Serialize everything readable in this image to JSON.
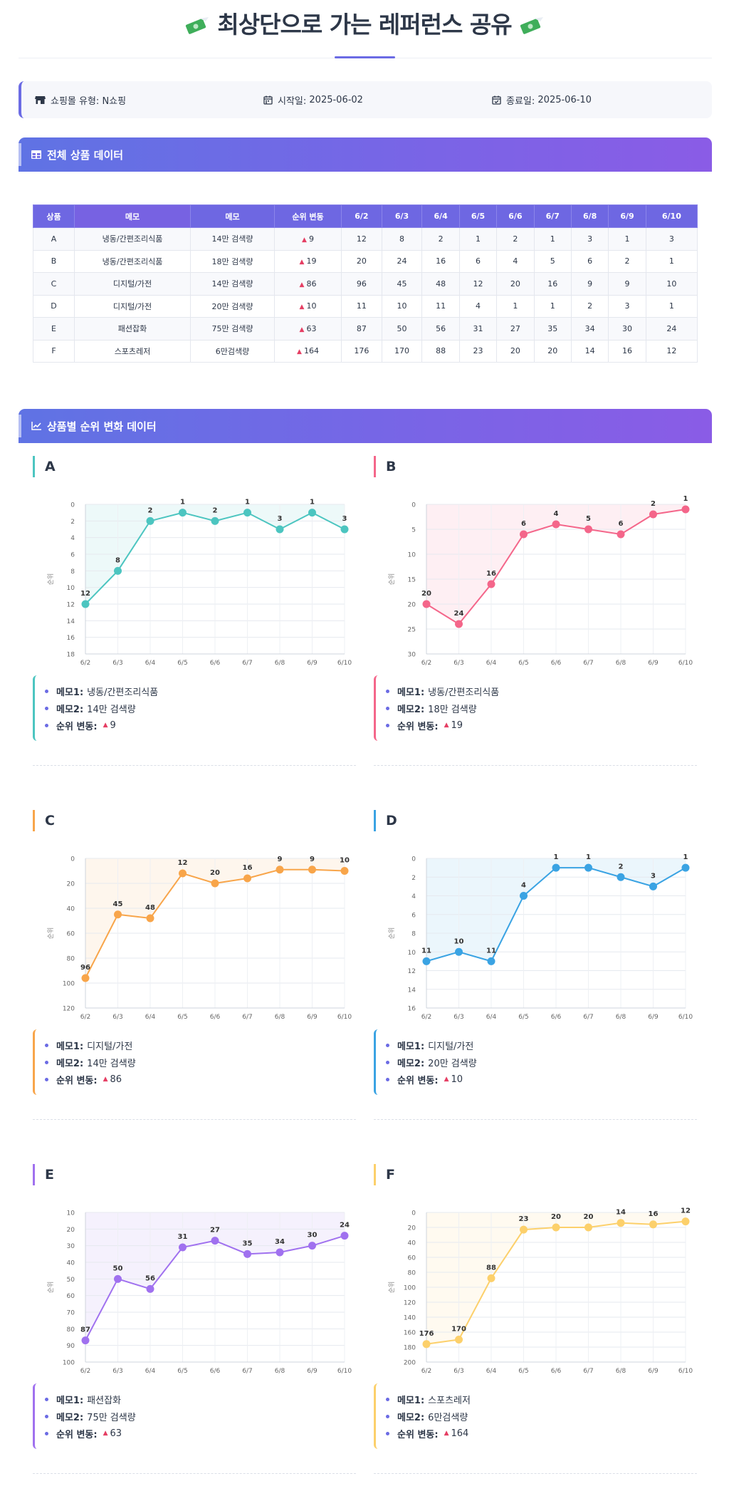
{
  "page": {
    "title": "최상단으로 가는 레퍼런스 공유"
  },
  "info": {
    "mall_label": "쇼핑몰 유형:",
    "mall_value": "N쇼핑",
    "start_label": "시작일:",
    "start_value": "2025-06-02",
    "end_label": "종료일:",
    "end_value": "2025-06-10"
  },
  "sections": {
    "table_title": "전체 상품 데이터",
    "charts_title": "상품별 순위 변화 데이터"
  },
  "table": {
    "headers": [
      "상품",
      "메모",
      "메모",
      "순위 변동",
      "6/2",
      "6/3",
      "6/4",
      "6/5",
      "6/6",
      "6/7",
      "6/8",
      "6/9",
      "6/10"
    ],
    "rows": [
      {
        "product": "A",
        "memo1": "냉동/간편조리식품",
        "memo2": "14만 검색량",
        "change": "9",
        "ranks": [
          "12",
          "8",
          "2",
          "1",
          "2",
          "1",
          "3",
          "1",
          "3"
        ]
      },
      {
        "product": "B",
        "memo1": "냉동/간편조리식품",
        "memo2": "18만 검색량",
        "change": "19",
        "ranks": [
          "20",
          "24",
          "16",
          "6",
          "4",
          "5",
          "6",
          "2",
          "1"
        ]
      },
      {
        "product": "C",
        "memo1": "디지털/가전",
        "memo2": "14만 검색량",
        "change": "86",
        "ranks": [
          "96",
          "45",
          "48",
          "12",
          "20",
          "16",
          "9",
          "9",
          "10"
        ]
      },
      {
        "product": "D",
        "memo1": "디지털/가전",
        "memo2": "20만 검색량",
        "change": "10",
        "ranks": [
          "11",
          "10",
          "11",
          "4",
          "1",
          "1",
          "2",
          "3",
          "1"
        ]
      },
      {
        "product": "E",
        "memo1": "패션잡화",
        "memo2": "75만 검색량",
        "change": "63",
        "ranks": [
          "87",
          "50",
          "56",
          "31",
          "27",
          "35",
          "34",
          "30",
          "24"
        ]
      },
      {
        "product": "F",
        "memo1": "스포츠레저",
        "memo2": "6만검색량",
        "change": "164",
        "ranks": [
          "176",
          "170",
          "88",
          "23",
          "20",
          "20",
          "14",
          "16",
          "12"
        ]
      }
    ]
  },
  "memo_labels": {
    "memo1": "메모1:",
    "memo2": "메모2:",
    "change": "순위 변동:"
  },
  "chart_data": [
    {
      "type": "line",
      "title": "A",
      "ylabel": "순위",
      "y_reversed": true,
      "ylim": [
        0,
        18
      ],
      "yticks": [
        0,
        2,
        4,
        6,
        8,
        10,
        12,
        14,
        16,
        18
      ],
      "categories": [
        "6/2",
        "6/3",
        "6/4",
        "6/5",
        "6/6",
        "6/7",
        "6/8",
        "6/9",
        "6/10"
      ],
      "values": [
        12,
        8,
        2,
        1,
        2,
        1,
        3,
        1,
        3
      ],
      "color": "#4cc5c0",
      "grid": true,
      "memo1": "냉동/간편조리식품",
      "memo2": "14만 검색량",
      "change": "9"
    },
    {
      "type": "line",
      "title": "B",
      "ylabel": "순위",
      "y_reversed": true,
      "ylim": [
        0,
        30
      ],
      "yticks": [
        0,
        5,
        10,
        15,
        20,
        25,
        30
      ],
      "categories": [
        "6/2",
        "6/3",
        "6/4",
        "6/5",
        "6/6",
        "6/7",
        "6/8",
        "6/9",
        "6/10"
      ],
      "values": [
        20,
        24,
        16,
        6,
        4,
        5,
        6,
        2,
        1
      ],
      "color": "#f4668a",
      "grid": true,
      "memo1": "냉동/간편조리식품",
      "memo2": "18만 검색량",
      "change": "19"
    },
    {
      "type": "line",
      "title": "C",
      "ylabel": "순위",
      "y_reversed": true,
      "ylim": [
        0,
        120
      ],
      "yticks": [
        0,
        20,
        40,
        60,
        80,
        100,
        120
      ],
      "categories": [
        "6/2",
        "6/3",
        "6/4",
        "6/5",
        "6/6",
        "6/7",
        "6/8",
        "6/9",
        "6/10"
      ],
      "values": [
        96,
        45,
        48,
        12,
        20,
        16,
        9,
        9,
        10
      ],
      "color": "#f8a54a",
      "grid": true,
      "memo1": "디지털/가전",
      "memo2": "14만 검색량",
      "change": "86"
    },
    {
      "type": "line",
      "title": "D",
      "ylabel": "순위",
      "y_reversed": true,
      "ylim": [
        0,
        16
      ],
      "yticks": [
        0,
        2,
        4,
        6,
        8,
        10,
        12,
        14,
        16
      ],
      "categories": [
        "6/2",
        "6/3",
        "6/4",
        "6/5",
        "6/6",
        "6/7",
        "6/8",
        "6/9",
        "6/10"
      ],
      "values": [
        11,
        10,
        11,
        4,
        1,
        1,
        2,
        3,
        1
      ],
      "color": "#3aa3e3",
      "grid": true,
      "memo1": "디지털/가전",
      "memo2": "20만 검색량",
      "change": "10"
    },
    {
      "type": "line",
      "title": "E",
      "ylabel": "순위",
      "y_reversed": true,
      "ylim": [
        10,
        100
      ],
      "yticks": [
        10,
        20,
        30,
        40,
        50,
        60,
        70,
        80,
        90,
        100
      ],
      "categories": [
        "6/2",
        "6/3",
        "6/4",
        "6/5",
        "6/6",
        "6/7",
        "6/8",
        "6/9",
        "6/10"
      ],
      "values": [
        87,
        50,
        56,
        31,
        27,
        35,
        34,
        30,
        24
      ],
      "color": "#a071ef",
      "grid": true,
      "memo1": "패션잡화",
      "memo2": "75만 검색량",
      "change": "63"
    },
    {
      "type": "line",
      "title": "F",
      "ylabel": "순위",
      "y_reversed": true,
      "ylim": [
        0,
        200
      ],
      "yticks": [
        0,
        20,
        40,
        60,
        80,
        100,
        120,
        140,
        160,
        180,
        200
      ],
      "categories": [
        "6/2",
        "6/3",
        "6/4",
        "6/5",
        "6/6",
        "6/7",
        "6/8",
        "6/9",
        "6/10"
      ],
      "values": [
        176,
        170,
        88,
        23,
        20,
        20,
        14,
        16,
        12
      ],
      "color": "#fcd06b",
      "grid": true,
      "memo1": "스포츠레저",
      "memo2": "6만검색량",
      "change": "164"
    }
  ]
}
